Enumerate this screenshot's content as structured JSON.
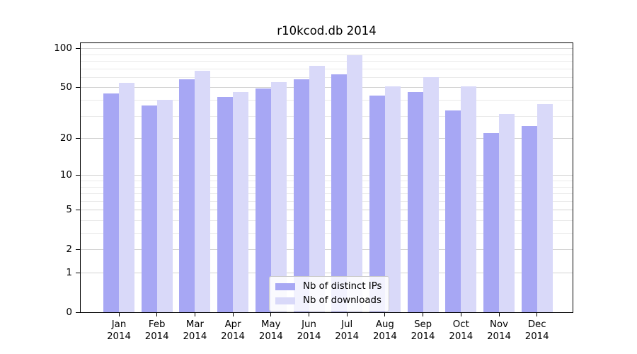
{
  "title": "r10kcod.db 2014",
  "chart_data": {
    "type": "bar",
    "title": "r10kcod.db 2014",
    "months": [
      "Jan",
      "Feb",
      "Mar",
      "Apr",
      "May",
      "Jun",
      "Jul",
      "Aug",
      "Sep",
      "Oct",
      "Nov",
      "Dec"
    ],
    "year_label": "2014",
    "series": [
      {
        "name": "Nb of distinct IPs",
        "color": "#a7a7f4",
        "values": [
          45,
          36,
          58,
          42,
          49,
          58,
          63,
          43,
          46,
          33,
          22,
          25
        ]
      },
      {
        "name": "Nb of downloads",
        "color": "#d9d9f9",
        "values": [
          54,
          40,
          67,
          46,
          55,
          73,
          88,
          51,
          60,
          51,
          31,
          37
        ]
      }
    ],
    "y_scale": "log1p",
    "y_axis": {
      "ticks": [
        0,
        1,
        2,
        5,
        10,
        20,
        50,
        100
      ],
      "minor_ticks": [
        3,
        4,
        6,
        7,
        8,
        9,
        30,
        40,
        60,
        70,
        80,
        90
      ],
      "max": 110
    },
    "xlabel": "",
    "ylabel": "",
    "grid": true,
    "legend_position": "lower center",
    "colors": {
      "grid_major": "#d2d2d2",
      "grid_minor": "#eaeaea",
      "spine": "#000000"
    }
  }
}
